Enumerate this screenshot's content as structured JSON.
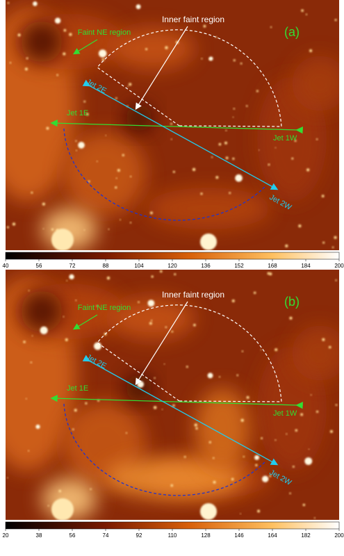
{
  "panels": [
    {
      "label": "(a)",
      "annotations": {
        "inner_faint_region": "Inner faint region",
        "faint_ne_region": "Faint NE region",
        "jet_2e": "Jet 2E",
        "jet_1e": "Jet 1E",
        "jet_1w": "Jet 1W",
        "jet_2w": "Jet 2W"
      },
      "colorbar_ticks": [
        40,
        56,
        72,
        88,
        104,
        120,
        136,
        152,
        168,
        184,
        200
      ]
    },
    {
      "label": "(b)",
      "annotations": {
        "inner_faint_region": "Inner faint region",
        "faint_ne_region": "Faint NE region",
        "jet_2e": "Jet 2E",
        "jet_1e": "Jet 1E",
        "jet_1w": "Jet 1W",
        "jet_2w": "Jet 2W"
      },
      "colorbar_ticks": [
        20,
        38,
        56,
        74,
        92,
        110,
        128,
        146,
        164,
        182,
        200
      ]
    }
  ]
}
